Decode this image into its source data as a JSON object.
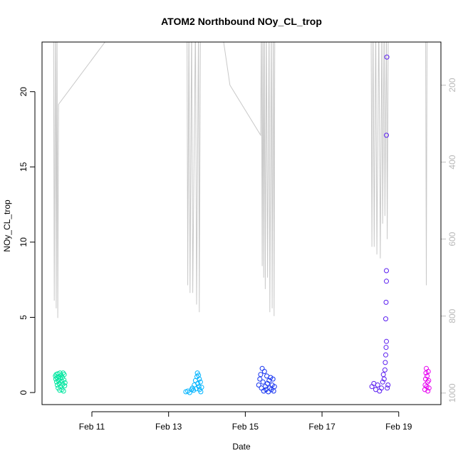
{
  "chart_data": {
    "type": "scatter",
    "title": "ATOM2 Northbound NOy_CL_trop",
    "xlabel": "Date",
    "ylabel": "NOy_CL_trop",
    "x_ticks": [
      "Feb 11",
      "Feb 13",
      "Feb 15",
      "Feb 17",
      "Feb 19"
    ],
    "x_tick_days": [
      11,
      13,
      15,
      17,
      19
    ],
    "xlim_days": [
      9.7,
      20.1
    ],
    "ylim": [
      -0.8,
      23.3
    ],
    "y_ticks": [
      0,
      5,
      10,
      15,
      20
    ],
    "right_axis": {
      "ticks": [
        200,
        400,
        600,
        800,
        1000
      ],
      "range": [
        88,
        1030
      ],
      "reversed": true,
      "color": "#bebebe"
    },
    "grid": false,
    "series": [
      {
        "color": "#00e6a0",
        "points": [
          [
            10.05,
            1.1
          ],
          [
            10.06,
            0.9
          ],
          [
            10.07,
            1.2
          ],
          [
            10.08,
            0.7
          ],
          [
            10.09,
            1.0
          ],
          [
            10.1,
            0.5
          ],
          [
            10.11,
            1.25
          ],
          [
            10.12,
            0.3
          ],
          [
            10.13,
            0.8
          ],
          [
            10.14,
            1.05
          ],
          [
            10.15,
            0.6
          ],
          [
            10.16,
            0.15
          ],
          [
            10.17,
            1.3
          ],
          [
            10.18,
            0.95
          ],
          [
            10.19,
            0.4
          ],
          [
            10.2,
            1.15
          ],
          [
            10.21,
            0.75
          ],
          [
            10.22,
            0.2
          ],
          [
            10.23,
            1.0
          ],
          [
            10.24,
            0.55
          ],
          [
            10.25,
            1.3
          ],
          [
            10.26,
            0.1
          ],
          [
            10.27,
            0.85
          ],
          [
            10.28,
            1.2
          ],
          [
            10.29,
            0.45
          ],
          [
            10.3,
            0.65
          ]
        ]
      },
      {
        "color": "#00b4ff",
        "points": [
          [
            13.45,
            0.05
          ],
          [
            13.5,
            0.1
          ],
          [
            13.55,
            0.0
          ],
          [
            13.6,
            0.2
          ],
          [
            13.62,
            0.3
          ],
          [
            13.65,
            0.15
          ],
          [
            13.67,
            0.5
          ],
          [
            13.7,
            0.8
          ],
          [
            13.72,
            0.25
          ],
          [
            13.74,
            1.05
          ],
          [
            13.75,
            1.3
          ],
          [
            13.76,
            0.6
          ],
          [
            13.78,
            1.15
          ],
          [
            13.79,
            0.4
          ],
          [
            13.8,
            0.9
          ],
          [
            13.81,
            0.2
          ],
          [
            13.83,
            0.7
          ],
          [
            13.84,
            0.05
          ],
          [
            13.86,
            0.35
          ]
        ]
      },
      {
        "color": "#1432f0",
        "points": [
          [
            15.35,
            0.5
          ],
          [
            15.38,
            0.9
          ],
          [
            15.4,
            1.2
          ],
          [
            15.42,
            0.3
          ],
          [
            15.44,
            1.6
          ],
          [
            15.46,
            0.7
          ],
          [
            15.48,
            0.1
          ],
          [
            15.5,
            1.4
          ],
          [
            15.52,
            0.4
          ],
          [
            15.54,
            0.2
          ],
          [
            15.56,
            1.1
          ],
          [
            15.58,
            0.6
          ],
          [
            15.6,
            0.05
          ],
          [
            15.62,
            0.8
          ],
          [
            15.64,
            0.3
          ],
          [
            15.66,
            1.0
          ],
          [
            15.68,
            0.2
          ],
          [
            15.7,
            0.5
          ],
          [
            15.72,
            0.9
          ],
          [
            15.74,
            0.1
          ],
          [
            15.76,
            0.4
          ]
        ]
      },
      {
        "color": "#5a1ef0",
        "points": [
          [
            18.3,
            0.4
          ],
          [
            18.35,
            0.6
          ],
          [
            18.4,
            0.2
          ],
          [
            18.45,
            0.5
          ],
          [
            18.5,
            0.1
          ],
          [
            18.55,
            0.3
          ],
          [
            18.58,
            0.7
          ],
          [
            18.6,
            1.2
          ],
          [
            18.62,
            0.9
          ],
          [
            18.64,
            1.5
          ],
          [
            18.65,
            2.0
          ],
          [
            18.66,
            2.5
          ],
          [
            18.67,
            3.0
          ],
          [
            18.68,
            3.4
          ],
          [
            18.66,
            4.9
          ],
          [
            18.67,
            6.0
          ],
          [
            18.68,
            7.4
          ],
          [
            18.68,
            8.1
          ],
          [
            18.68,
            17.1
          ],
          [
            18.69,
            22.3
          ],
          [
            18.7,
            0.3
          ],
          [
            18.72,
            0.5
          ]
        ]
      },
      {
        "color": "#e600f0",
        "points": [
          [
            19.68,
            0.2
          ],
          [
            19.69,
            0.5
          ],
          [
            19.7,
            0.9
          ],
          [
            19.71,
            1.3
          ],
          [
            19.72,
            1.6
          ],
          [
            19.73,
            0.4
          ],
          [
            19.74,
            1.1
          ],
          [
            19.75,
            0.7
          ],
          [
            19.76,
            0.1
          ],
          [
            19.77,
            1.4
          ],
          [
            19.78,
            0.8
          ],
          [
            19.79,
            0.3
          ]
        ]
      }
    ],
    "altitude_trace": {
      "color": "#c8c8c8",
      "points": [
        [
          10.0,
          30
        ],
        [
          10.02,
          760
        ],
        [
          10.05,
          30
        ],
        [
          10.07,
          780
        ],
        [
          10.09,
          30
        ],
        [
          10.11,
          805
        ],
        [
          10.13,
          250
        ],
        [
          11.7,
          40
        ],
        [
          11.9,
          40
        ],
        [
          12.1,
          40
        ],
        [
          12.5,
          40
        ],
        [
          12.9,
          40
        ],
        [
          13.48,
          30
        ],
        [
          13.5,
          720
        ],
        [
          13.53,
          30
        ],
        [
          13.56,
          740
        ],
        [
          13.6,
          30
        ],
        [
          13.63,
          740
        ],
        [
          13.7,
          30
        ],
        [
          13.73,
          770
        ],
        [
          13.78,
          30
        ],
        [
          13.8,
          790
        ],
        [
          13.83,
          30
        ],
        [
          14.35,
          30
        ],
        [
          14.6,
          200
        ],
        [
          15.4,
          330
        ],
        [
          15.42,
          30
        ],
        [
          15.44,
          670
        ],
        [
          15.46,
          30
        ],
        [
          15.48,
          700
        ],
        [
          15.5,
          30
        ],
        [
          15.52,
          730
        ],
        [
          15.55,
          30
        ],
        [
          15.58,
          700
        ],
        [
          15.62,
          30
        ],
        [
          15.64,
          790
        ],
        [
          15.68,
          30
        ],
        [
          15.7,
          780
        ],
        [
          15.73,
          30
        ],
        [
          15.75,
          800
        ],
        [
          15.77,
          30
        ],
        [
          18.28,
          30
        ],
        [
          18.3,
          620
        ],
        [
          18.33,
          30
        ],
        [
          18.36,
          620
        ],
        [
          18.4,
          30
        ],
        [
          18.43,
          640
        ],
        [
          18.48,
          30
        ],
        [
          18.52,
          650
        ],
        [
          18.56,
          30
        ],
        [
          18.58,
          560
        ],
        [
          18.62,
          30
        ],
        [
          18.64,
          540
        ],
        [
          18.68,
          30
        ],
        [
          18.7,
          600
        ],
        [
          18.73,
          30
        ],
        [
          19.7,
          30
        ],
        [
          19.72,
          720
        ],
        [
          19.74,
          30
        ]
      ]
    }
  }
}
